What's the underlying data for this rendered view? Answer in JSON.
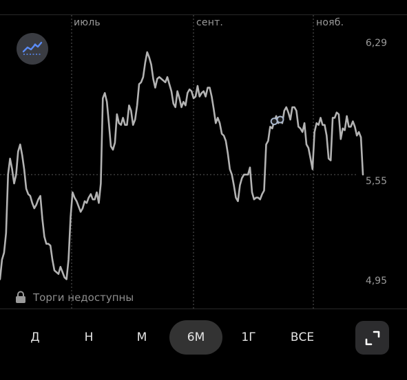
{
  "chart_data": {
    "type": "line",
    "x_ticks": [
      "июль",
      "сент.",
      "нояб."
    ],
    "y_ticks": [
      6.29,
      5.55,
      4.95
    ],
    "y_tick_labels": [
      "6,29",
      "5,55",
      "4,95"
    ],
    "ylim": [
      4.9,
      6.35
    ],
    "current_value": 5.55,
    "grid": "vertical dotted at month ticks, horizontal dotted at current price",
    "series": [
      {
        "values": [
          4.96,
          5.07,
          5.11,
          5.22,
          5.55,
          5.64,
          5.58,
          5.5,
          5.55,
          5.68,
          5.72,
          5.66,
          5.58,
          5.47,
          5.44,
          5.43,
          5.39,
          5.36,
          5.38,
          5.41,
          5.43,
          5.3,
          5.2,
          5.16,
          5.16,
          5.15,
          5.07,
          5.01,
          5.0,
          4.99,
          5.03,
          5.0,
          4.97,
          4.96,
          5.07,
          5.31,
          5.45,
          5.42,
          5.4,
          5.37,
          5.34,
          5.36,
          5.4,
          5.39,
          5.42,
          5.44,
          5.41,
          5.41,
          5.45,
          5.39,
          5.5,
          5.98,
          6.01,
          5.96,
          5.84,
          5.71,
          5.69,
          5.73,
          5.89,
          5.84,
          5.83,
          5.87,
          5.83,
          5.83,
          5.94,
          5.91,
          5.83,
          5.86,
          5.94,
          6.06,
          6.07,
          6.1,
          6.18,
          6.24,
          6.21,
          6.17,
          6.09,
          6.04,
          6.09,
          6.1,
          6.09,
          6.08,
          6.07,
          6.1,
          6.06,
          6.02,
          5.95,
          5.93,
          6.02,
          5.98,
          5.93,
          5.96,
          5.94,
          6.01,
          6.03,
          6.02,
          5.98,
          5.99,
          6.05,
          5.99,
          6.01,
          6.02,
          5.99,
          6.04,
          6.04,
          5.99,
          5.92,
          5.84,
          5.87,
          5.84,
          5.78,
          5.77,
          5.74,
          5.67,
          5.58,
          5.55,
          5.49,
          5.42,
          5.4,
          5.49,
          5.53,
          5.55,
          5.55,
          5.55,
          5.59,
          5.45,
          5.41,
          5.42,
          5.42,
          5.41,
          5.44,
          5.46,
          5.72,
          5.74,
          5.82,
          5.81,
          5.85,
          5.88,
          5.84,
          5.86,
          5.84,
          5.91,
          5.93,
          5.9,
          5.86,
          5.93,
          5.93,
          5.91,
          5.82,
          5.81,
          5.79,
          5.84,
          5.72,
          5.7,
          5.64,
          5.58,
          5.79,
          5.84,
          5.83,
          5.87,
          5.83,
          5.83,
          5.77,
          5.64,
          5.63,
          5.87,
          5.87,
          5.9,
          5.89,
          5.75,
          5.81,
          5.8,
          5.88,
          5.82,
          5.82,
          5.85,
          5.82,
          5.77,
          5.79,
          5.76,
          5.55
        ]
      }
    ]
  },
  "trend_badge": {
    "icon": "trend-chart-icon",
    "accent": "#5b8cf7"
  },
  "status": {
    "icon": "lock-icon",
    "text": "Торги недоступны"
  },
  "periods": [
    {
      "label": "Д",
      "active": false
    },
    {
      "label": "Н",
      "active": false
    },
    {
      "label": "М",
      "active": false
    },
    {
      "label": "6М",
      "active": true
    },
    {
      "label": "1Г",
      "active": false
    },
    {
      "label": "ВСЕ",
      "active": false
    }
  ],
  "expand": {
    "icon": "expand-icon"
  },
  "colors": {
    "line": "#b3b3b3",
    "background": "#000000",
    "grid": "#5a5a5a",
    "active_pill": "#333333"
  }
}
